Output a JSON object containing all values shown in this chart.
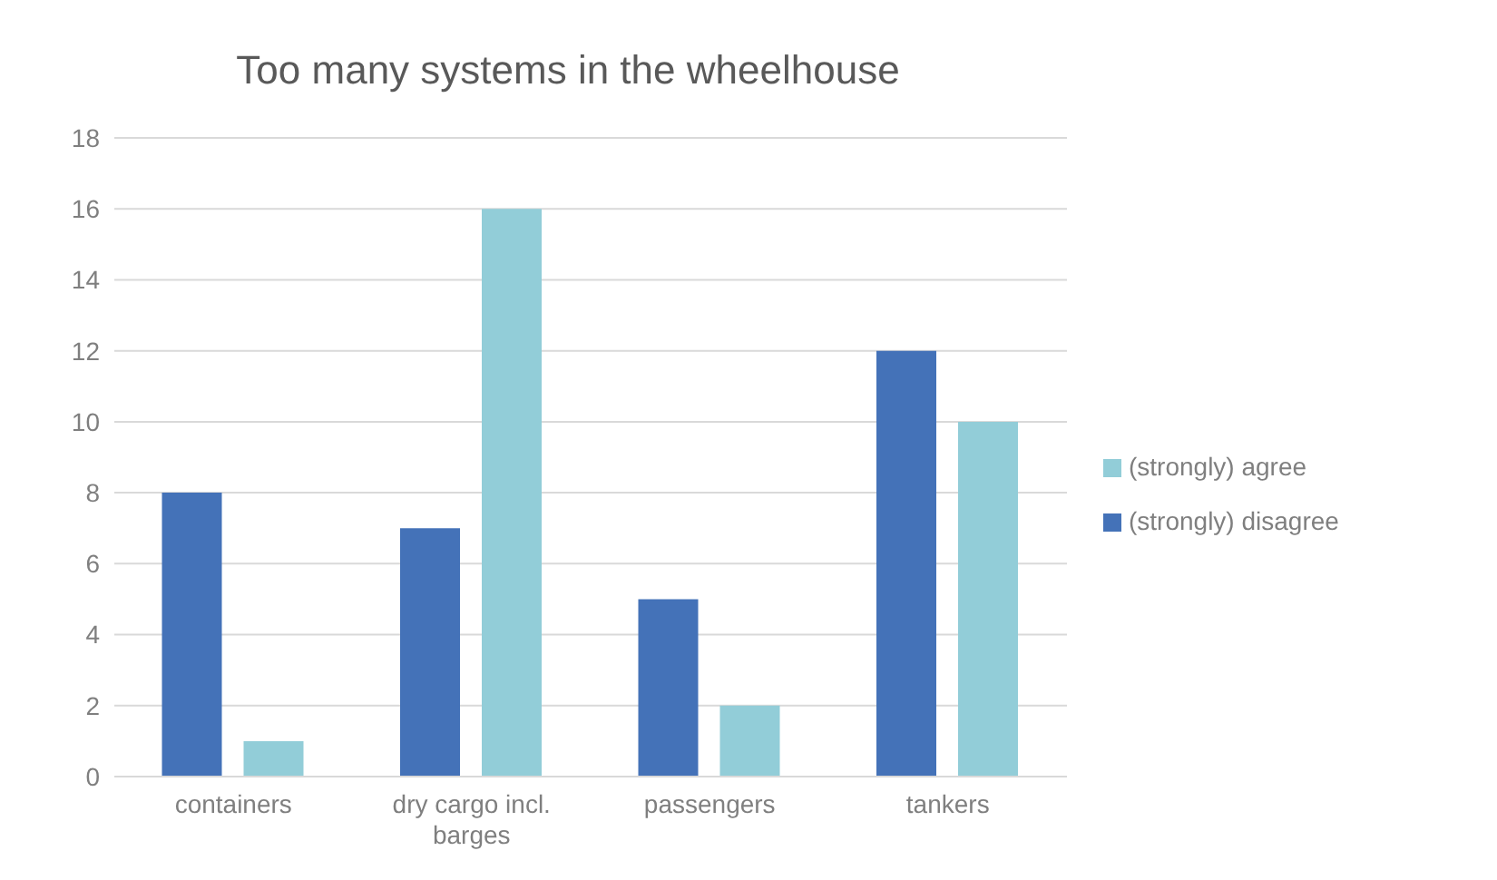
{
  "chart_data": {
    "type": "bar",
    "title": "Too many systems in the wheelhouse",
    "categories": [
      "containers",
      "dry cargo incl. barges",
      "passengers",
      "tankers"
    ],
    "series": [
      {
        "name": "(strongly) disagree",
        "color": "#4472b8",
        "values": [
          8,
          7,
          5,
          12
        ]
      },
      {
        "name": "(strongly) agree",
        "color": "#92cdd8",
        "values": [
          1,
          16,
          2,
          10
        ]
      }
    ],
    "ylim": [
      0,
      18
    ],
    "yticks": [
      0,
      2,
      4,
      6,
      8,
      10,
      12,
      14,
      16,
      18
    ],
    "grid": "y",
    "legend": "right"
  }
}
